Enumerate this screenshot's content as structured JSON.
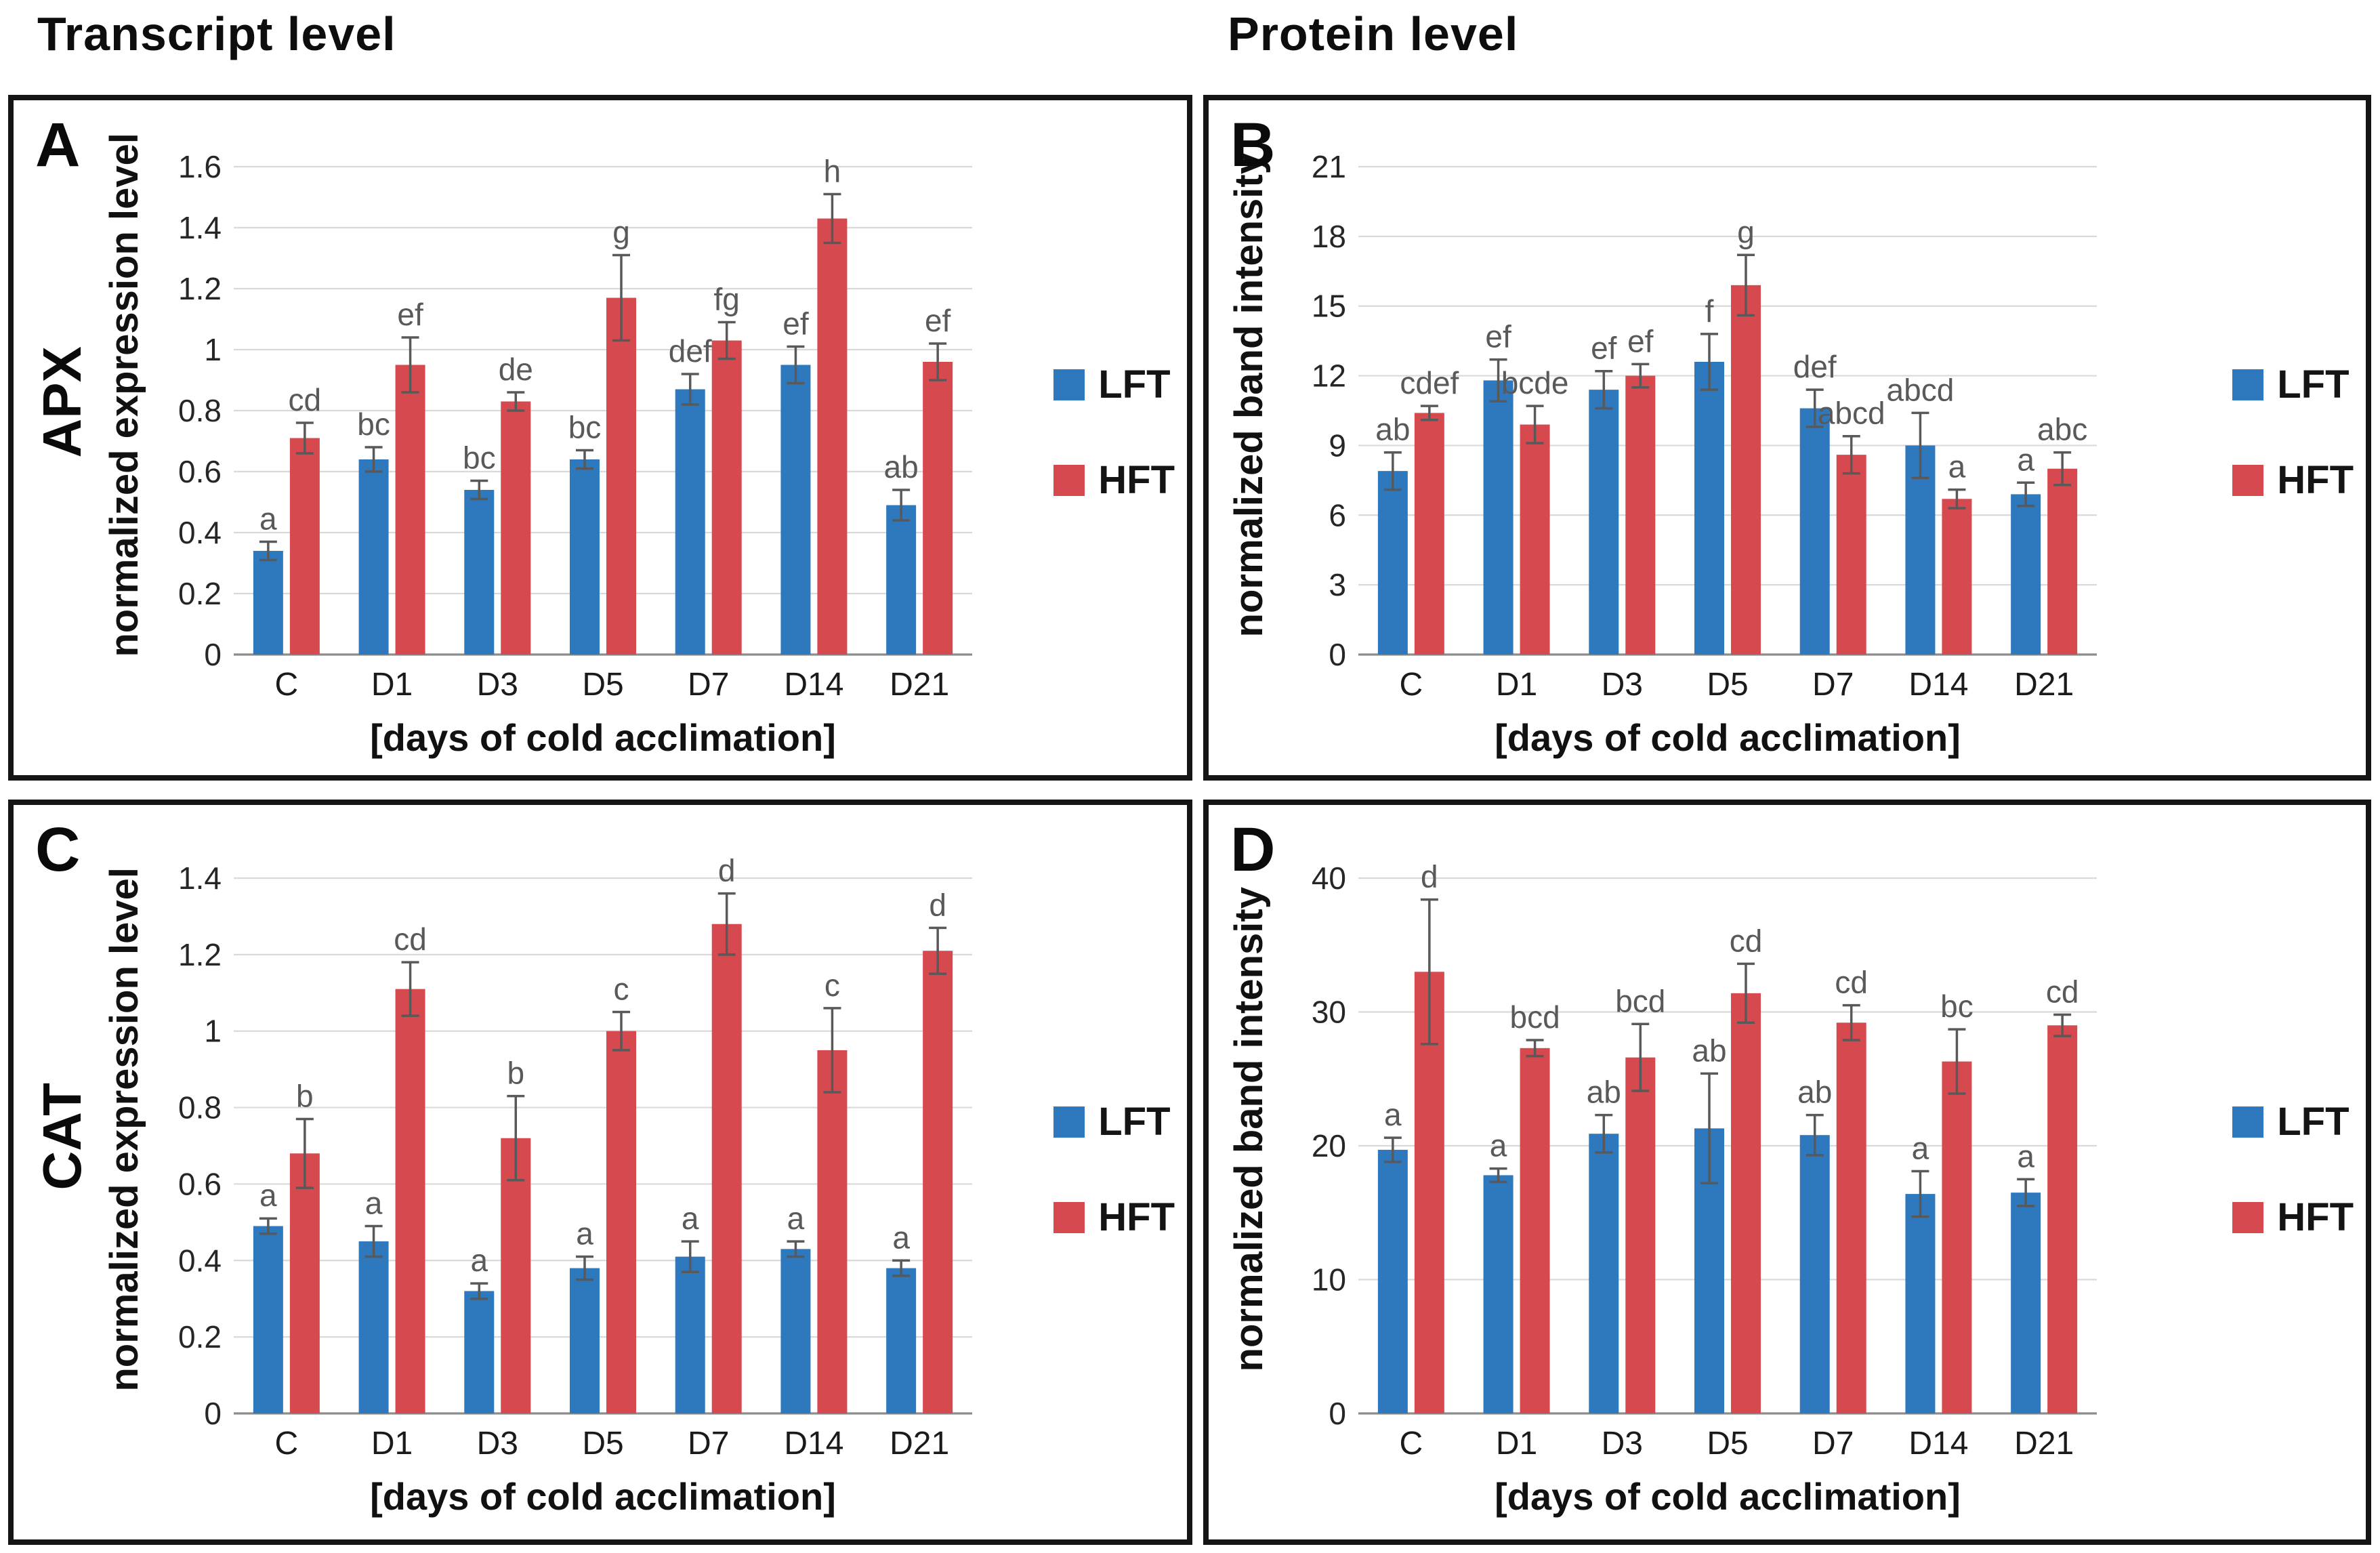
{
  "page": {
    "left_heading": "Transcript level",
    "right_heading": "Protein level"
  },
  "colors": {
    "lft": "#2e78be",
    "hft": "#d6494e",
    "grid": "#d9d9d9",
    "baseline": "#8c8c8c",
    "error": "#595959",
    "letter": "#595959",
    "tick_text": "#262626",
    "category_text": "#1a1a1a",
    "axis_title_text": "#111111"
  },
  "legend": {
    "items": [
      {
        "label": "LFT",
        "color_key": "lft"
      },
      {
        "label": "HFT",
        "color_key": "hft"
      }
    ]
  },
  "chart_data": [
    {
      "panel_label": "A",
      "gene": "APX",
      "type": "bar",
      "ylabel": "normalized expression level",
      "xlabel": "[days of cold acclimation]",
      "categories": [
        "C",
        "D1",
        "D3",
        "D5",
        "D7",
        "D14",
        "D21"
      ],
      "ylim": [
        0,
        1.6
      ],
      "yticks": [
        0,
        0.2,
        0.4,
        0.6,
        0.8,
        1,
        1.2,
        1.4,
        1.6
      ],
      "ytick_labels": [
        "0",
        "0.2",
        "0.4",
        "0.6",
        "0.8",
        "1",
        "1.2",
        "1.4",
        "1.6"
      ],
      "grid": true,
      "legend_position": "right",
      "series": [
        {
          "name": "LFT",
          "color_key": "lft",
          "values": [
            0.34,
            0.64,
            0.54,
            0.64,
            0.87,
            0.95,
            0.49
          ],
          "errors": [
            0.03,
            0.04,
            0.03,
            0.03,
            0.05,
            0.06,
            0.05
          ],
          "letters": [
            "a",
            "bc",
            "bc",
            "bc",
            "def",
            "ef",
            "ab"
          ]
        },
        {
          "name": "HFT",
          "color_key": "hft",
          "values": [
            0.71,
            0.95,
            0.83,
            1.17,
            1.03,
            1.43,
            0.96
          ],
          "errors": [
            0.05,
            0.09,
            0.03,
            0.14,
            0.06,
            0.08,
            0.06
          ],
          "letters": [
            "cd",
            "ef",
            "de",
            "g",
            "fg",
            "h",
            "ef"
          ]
        }
      ]
    },
    {
      "panel_label": "B",
      "gene": "APX",
      "type": "bar",
      "ylabel": "normalized band intensity",
      "xlabel": "[days of cold acclimation]",
      "categories": [
        "C",
        "D1",
        "D3",
        "D5",
        "D7",
        "D14",
        "D21"
      ],
      "ylim": [
        0,
        21
      ],
      "yticks": [
        0,
        3,
        6,
        9,
        12,
        15,
        18,
        21
      ],
      "ytick_labels": [
        "0",
        "3",
        "6",
        "9",
        "12",
        "15",
        "18",
        "21"
      ],
      "grid": true,
      "legend_position": "right",
      "series": [
        {
          "name": "LFT",
          "color_key": "lft",
          "values": [
            7.9,
            11.8,
            11.4,
            12.6,
            10.6,
            9.0,
            6.9
          ],
          "errors": [
            0.8,
            0.9,
            0.8,
            1.2,
            0.8,
            1.4,
            0.5
          ],
          "letters": [
            "ab",
            "ef",
            "ef",
            "f",
            "def",
            "abcd",
            "a"
          ]
        },
        {
          "name": "HFT",
          "color_key": "hft",
          "values": [
            10.4,
            9.9,
            12.0,
            15.9,
            8.6,
            6.7,
            8.0
          ],
          "errors": [
            0.3,
            0.8,
            0.5,
            1.3,
            0.8,
            0.4,
            0.7
          ],
          "letters": [
            "cdef",
            "bcde",
            "ef",
            "g",
            "abcd",
            "a",
            "abc"
          ]
        }
      ]
    },
    {
      "panel_label": "C",
      "gene": "CAT",
      "type": "bar",
      "ylabel": "normalized expression level",
      "xlabel": "[days of cold acclimation]",
      "categories": [
        "C",
        "D1",
        "D3",
        "D5",
        "D7",
        "D14",
        "D21"
      ],
      "ylim": [
        0,
        1.4
      ],
      "yticks": [
        0,
        0.2,
        0.4,
        0.6,
        0.8,
        1,
        1.2,
        1.4
      ],
      "ytick_labels": [
        "0",
        "0.2",
        "0.4",
        "0.6",
        "0.8",
        "1",
        "1.2",
        "1.4"
      ],
      "grid": true,
      "legend_position": "right",
      "series": [
        {
          "name": "LFT",
          "color_key": "lft",
          "values": [
            0.49,
            0.45,
            0.32,
            0.38,
            0.41,
            0.43,
            0.38
          ],
          "errors": [
            0.02,
            0.04,
            0.02,
            0.03,
            0.04,
            0.02,
            0.02
          ],
          "letters": [
            "a",
            "a",
            "a",
            "a",
            "a",
            "a",
            "a"
          ]
        },
        {
          "name": "HFT",
          "color_key": "hft",
          "values": [
            0.68,
            1.11,
            0.72,
            1.0,
            1.28,
            0.95,
            1.21
          ],
          "errors": [
            0.09,
            0.07,
            0.11,
            0.05,
            0.08,
            0.11,
            0.06
          ],
          "letters": [
            "b",
            "cd",
            "b",
            "c",
            "d",
            "c",
            "d"
          ]
        }
      ]
    },
    {
      "panel_label": "D",
      "gene": "CAT",
      "type": "bar",
      "ylabel": "normalized band intensity",
      "xlabel": "[days of cold acclimation]",
      "categories": [
        "C",
        "D1",
        "D3",
        "D5",
        "D7",
        "D14",
        "D21"
      ],
      "ylim": [
        0,
        40
      ],
      "yticks": [
        0,
        10,
        20,
        30,
        40
      ],
      "ytick_labels": [
        "0",
        "10",
        "20",
        "30",
        "40"
      ],
      "grid": true,
      "legend_position": "right",
      "series": [
        {
          "name": "LFT",
          "color_key": "lft",
          "values": [
            19.7,
            17.8,
            20.9,
            21.3,
            20.8,
            16.4,
            16.5
          ],
          "errors": [
            0.9,
            0.5,
            1.4,
            4.1,
            1.5,
            1.7,
            1.0
          ],
          "letters": [
            "a",
            "a",
            "ab",
            "ab",
            "ab",
            "a",
            "a"
          ]
        },
        {
          "name": "HFT",
          "color_key": "hft",
          "values": [
            33.0,
            27.3,
            26.6,
            31.4,
            29.2,
            26.3,
            29.0
          ],
          "errors": [
            5.4,
            0.6,
            2.5,
            2.2,
            1.3,
            2.4,
            0.8
          ],
          "letters": [
            "d",
            "bcd",
            "bcd",
            "cd",
            "cd",
            "bc",
            "cd"
          ]
        }
      ]
    }
  ]
}
